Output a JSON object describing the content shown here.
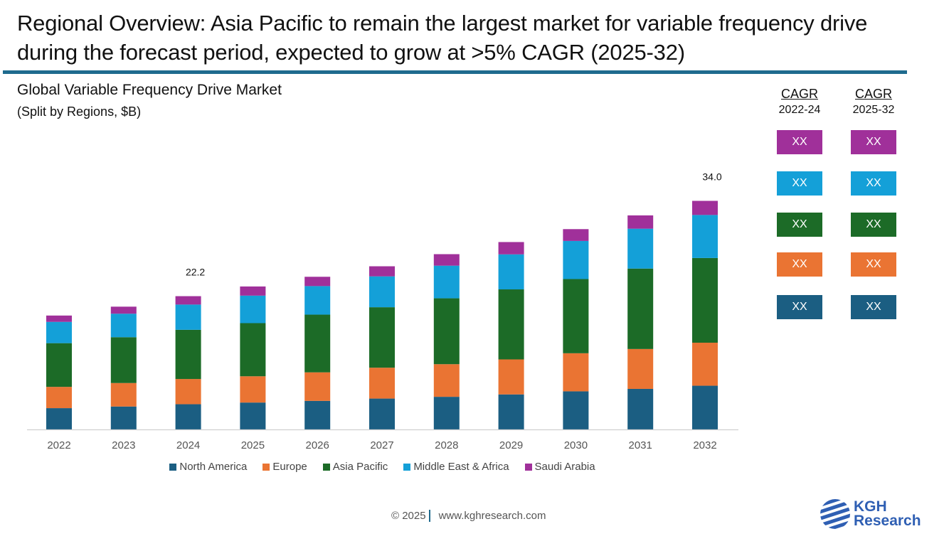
{
  "headline": "Regional Overview: Asia Pacific to remain the largest market for variable frequency drive during the forecast period, expected to grow at >5% CAGR (2025-32)",
  "colors": {
    "rule": "#1F6B8E",
    "north_america": "#1B5E82",
    "europe": "#EA7433",
    "asia_pacific": "#1C6B27",
    "mea": "#14A0D8",
    "saudi_arabia": "#A0309A"
  },
  "chart_data": {
    "type": "bar",
    "stacked": true,
    "title": "Global Variable Frequency Drive Market",
    "subtitle": "(Split by Regions, $B)",
    "xlabel": "",
    "ylabel": "",
    "grid": false,
    "legend_position": "bottom",
    "categories": [
      "2022",
      "2023",
      "2024",
      "2025",
      "2026",
      "2027",
      "2028",
      "2029",
      "2030",
      "2031",
      "2032"
    ],
    "series": [
      {
        "name": "North America",
        "color": "#1B5E82",
        "values": [
          3.7,
          3.9,
          4.2,
          4.4,
          4.6,
          4.9,
          5.1,
          5.4,
          5.8,
          6.1,
          6.5
        ]
      },
      {
        "name": "Europe",
        "color": "#EA7433",
        "values": [
          3.7,
          4.0,
          4.2,
          4.3,
          4.6,
          4.9,
          5.1,
          5.4,
          5.8,
          6.0,
          6.4
        ]
      },
      {
        "name": "Asia Pacific",
        "color": "#1C6B27",
        "values": [
          7.6,
          7.8,
          8.2,
          8.7,
          9.3,
          9.6,
          10.3,
          10.8,
          11.3,
          12.1,
          12.6
        ]
      },
      {
        "name": "Middle East & Africa",
        "color": "#14A0D8",
        "values": [
          3.7,
          4.0,
          4.2,
          4.5,
          4.6,
          4.9,
          5.1,
          5.4,
          5.8,
          6.0,
          6.4
        ]
      },
      {
        "name": "Saudi Arabia",
        "color": "#A0309A",
        "values": [
          1.1,
          1.2,
          1.4,
          1.5,
          1.5,
          1.6,
          1.8,
          1.9,
          1.8,
          2.0,
          2.1
        ]
      }
    ],
    "totals": [
      19.8,
      20.9,
      22.2,
      23.4,
      24.6,
      25.9,
      27.4,
      28.9,
      30.5,
      32.2,
      34.0
    ],
    "annotations": [
      {
        "category": "2024",
        "text": "22.2"
      },
      {
        "category": "2032",
        "text": "34.0"
      }
    ],
    "ylim": [
      5.7,
      36
    ]
  },
  "cagr": {
    "columns": [
      {
        "title": "CAGR",
        "period": "2022-24"
      },
      {
        "title": "CAGR",
        "period": "2025-32"
      }
    ],
    "rows": [
      {
        "region": "Saudi Arabia",
        "color": "#A0309A",
        "values": [
          "XX",
          "XX"
        ]
      },
      {
        "region": "Middle East & Africa",
        "color": "#14A0D8",
        "values": [
          "XX",
          "XX"
        ]
      },
      {
        "region": "Asia Pacific",
        "color": "#1C6B27",
        "values": [
          "XX",
          "XX"
        ]
      },
      {
        "region": "Europe",
        "color": "#EA7433",
        "values": [
          "XX",
          "XX"
        ]
      },
      {
        "region": "North America",
        "color": "#1B5E82",
        "values": [
          "XX",
          "XX"
        ]
      }
    ]
  },
  "footer": {
    "copyright": "© 2025",
    "website": "www.kghresearch.com"
  },
  "logo": {
    "line1": "KGH",
    "line2": "Research",
    "icon": "globe-stripes-icon"
  }
}
